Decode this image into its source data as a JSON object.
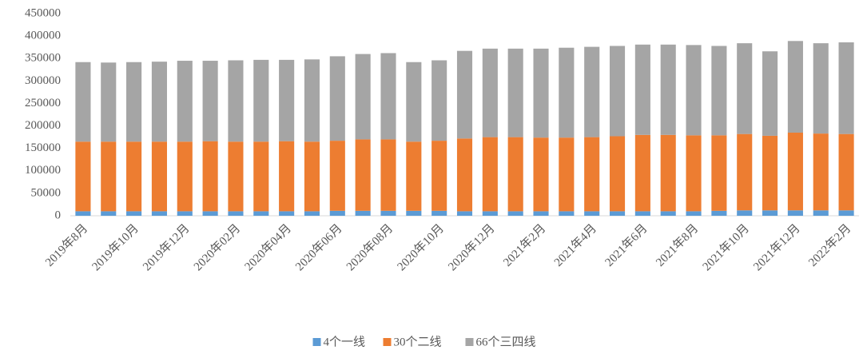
{
  "chart_data": {
    "type": "stacked_bar",
    "categories": [
      "2019年8月",
      null,
      "2019年10月",
      null,
      "2019年12月",
      null,
      "2020年02月",
      null,
      "2020年04月",
      null,
      "2020年06月",
      null,
      "2020年08月",
      null,
      "2020年10月",
      null,
      "2020年12月",
      null,
      "2021年2月",
      null,
      "2021年4月",
      null,
      "2021年6月",
      null,
      "2021年8月",
      null,
      "2021年10月",
      null,
      "2021年12月",
      null,
      "2022年2月"
    ],
    "series": [
      {
        "name": "4个一线",
        "color": "#5b9bd5",
        "values": [
          10000,
          10000,
          10000,
          10000,
          10000,
          10000,
          10000,
          10000,
          10000,
          10000,
          11000,
          11000,
          11000,
          11000,
          11000,
          10000,
          10000,
          10000,
          10000,
          10000,
          10000,
          10000,
          10000,
          10000,
          10000,
          11000,
          12000,
          12000,
          12000,
          12000,
          12000
        ]
      },
      {
        "name": "30个二线",
        "color": "#ed7d31",
        "values": [
          155000,
          155000,
          155000,
          155000,
          155000,
          156000,
          155000,
          155000,
          156000,
          155000,
          156000,
          159000,
          159000,
          154000,
          156000,
          162000,
          165000,
          165000,
          164000,
          164000,
          165000,
          167000,
          170000,
          170000,
          169000,
          168000,
          170000,
          166000,
          173000,
          171000,
          170000
        ]
      },
      {
        "name": "66个三四线",
        "color": "#a5a5a5",
        "values": [
          177000,
          176000,
          177000,
          178000,
          180000,
          179000,
          181000,
          182000,
          181000,
          183000,
          188000,
          190000,
          192000,
          177000,
          179000,
          195000,
          197000,
          197000,
          198000,
          200000,
          201000,
          201000,
          201000,
          201000,
          201000,
          199000,
          202000,
          188000,
          204000,
          201000,
          204000
        ]
      }
    ],
    "ylim": [
      0,
      450000
    ],
    "yticks": [
      0,
      50000,
      100000,
      150000,
      200000,
      250000,
      300000,
      350000,
      400000,
      450000
    ],
    "legend": "bottom"
  }
}
